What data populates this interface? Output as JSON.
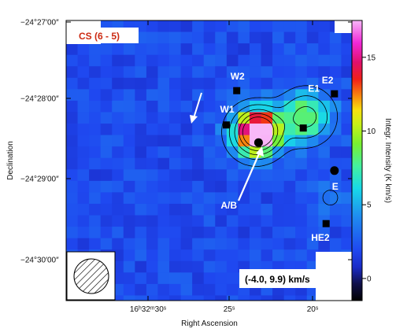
{
  "chart_data": {
    "type": "heatmap",
    "title": "",
    "xlabel": "Right Ascension",
    "ylabel": "Declination",
    "colorbar_label": "Integr. Intensity (K km/s)",
    "colorbar_ticks": [
      "0",
      "5",
      "10",
      "15"
    ],
    "colorbar_range": [
      -1.5,
      17.5
    ],
    "x_ticks": [
      "16ʰ32ᵐ30ˢ",
      "25ˢ",
      "20ˢ"
    ],
    "y_ticks": [
      "−24°27′00″",
      "−24°28′00″",
      "−24°29′00″",
      "−24°30′00″"
    ],
    "line_label": "CS (6 - 5)",
    "velocity_label": "(-4.0, 9.9) km/s",
    "grid": false,
    "intensity_map": {
      "background_level": 2.0,
      "sources": [
        {
          "ra_offset_arcsec": -17,
          "dec_offset_arcsec": 0,
          "peak": 16.0,
          "width": 12
        },
        {
          "ra_offset_arcsec": -13,
          "dec_offset_arcsec": 0,
          "peak": 6.0,
          "width": 18
        },
        {
          "ra_offset_arcsec": -63,
          "dec_offset_arcsec": 15,
          "peak": 7.0,
          "width": 17
        },
        {
          "ra_offset_arcsec": -86,
          "dec_offset_arcsec": -63,
          "peak": 1.8,
          "width": 12
        }
      ],
      "cutout_regions": [
        {
          "ra_offset_arcsec": 50,
          "dec_offset_arcsec": 75,
          "note": "top-left blank corner"
        },
        {
          "ra_offset_arcsec": 30,
          "dec_offset_arcsec": 120,
          "note": "top-right blank corner"
        },
        {
          "ra_offset_arcsec": 40,
          "dec_offset_arcsec": -110,
          "note": "bottom-right blank step"
        }
      ]
    },
    "contour_levels": [
      3.5,
      5.5,
      8,
      11,
      14
    ],
    "markers": [
      {
        "label": "E2",
        "shape": "square",
        "ra_offset_arcsec": -90,
        "dec_offset_arcsec": 37
      },
      {
        "label": "W2",
        "shape": "square",
        "ra_offset_arcsec": 4,
        "dec_offset_arcsec": 40
      },
      {
        "label": "W1",
        "shape": "square",
        "ra_offset_arcsec": 14,
        "dec_offset_arcsec": 7
      },
      {
        "label": "E1",
        "shape": "square",
        "ra_offset_arcsec": -60,
        "dec_offset_arcsec": 4
      },
      {
        "label": "A/B",
        "shape": "circle",
        "ra_offset_arcsec": -17,
        "dec_offset_arcsec": -10
      },
      {
        "label": "E",
        "shape": "circle",
        "ra_offset_arcsec": -90,
        "dec_offset_arcsec": -37
      },
      {
        "label": "HE2",
        "shape": "square",
        "ra_offset_arcsec": -82,
        "dec_offset_arcsec": -88
      }
    ],
    "beam": {
      "shape": "circle",
      "hatched": true,
      "location": "bottom-left"
    }
  }
}
